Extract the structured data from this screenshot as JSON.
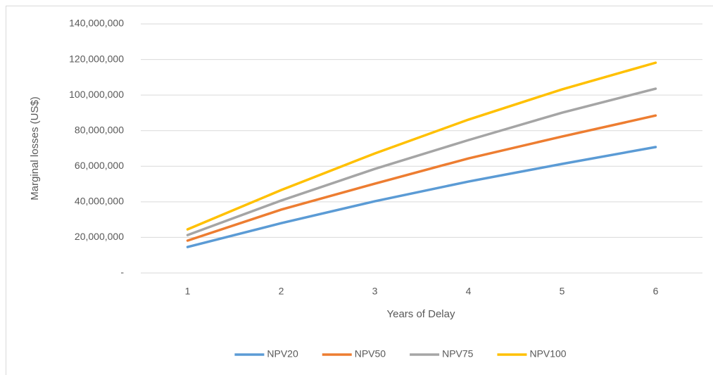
{
  "chart_data": {
    "type": "line",
    "x_label": "Years of Delay",
    "y_label": "Marginal losses (US$)",
    "categories": [
      "1",
      "2",
      "3",
      "4",
      "5",
      "6"
    ],
    "series": [
      {
        "name": "NPV20",
        "color": "#5b9bd5",
        "values": [
          14600000,
          28000000,
          40300000,
          51400000,
          61300000,
          70800000
        ]
      },
      {
        "name": "NPV50",
        "color": "#ed7d31",
        "values": [
          18200000,
          35600000,
          50200000,
          64400000,
          76700000,
          88500000
        ]
      },
      {
        "name": "NPV75",
        "color": "#a5a5a5",
        "values": [
          21300000,
          40700000,
          58500000,
          74700000,
          90100000,
          103600000
        ]
      },
      {
        "name": "NPV100",
        "color": "#ffc000",
        "values": [
          24500000,
          46600000,
          67200000,
          86200000,
          103200000,
          118200000
        ]
      }
    ],
    "ylim": [
      0,
      140000000
    ],
    "yticks": [
      {
        "value": 0,
        "label": "-"
      },
      {
        "value": 20000000,
        "label": "20,000,000"
      },
      {
        "value": 40000000,
        "label": "40,000,000"
      },
      {
        "value": 60000000,
        "label": "60,000,000"
      },
      {
        "value": 80000000,
        "label": "80,000,000"
      },
      {
        "value": 100000000,
        "label": "100,000,000"
      },
      {
        "value": 120000000,
        "label": "120,000,000"
      },
      {
        "value": 140000000,
        "label": "140,000,000"
      }
    ],
    "grid": true,
    "legend": "bottom"
  }
}
